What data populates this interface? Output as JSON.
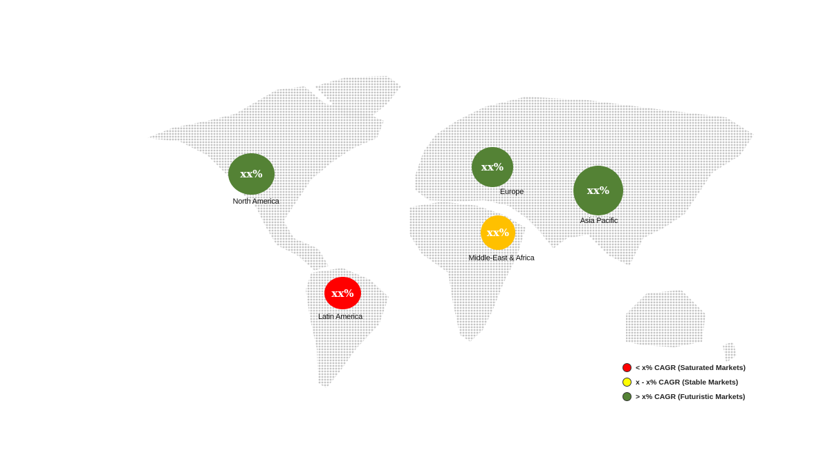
{
  "colors": {
    "saturated": "#FF0000",
    "stable": "#FFFF00",
    "futuristic": "#548235",
    "stable_bubble": "#FFC000",
    "map_dots": "#c4c4c4"
  },
  "regions": [
    {
      "name": "North America",
      "value": "xx%",
      "category": "futuristic"
    },
    {
      "name": "Europe",
      "value": "xx%",
      "category": "futuristic"
    },
    {
      "name": "Asia Pacific",
      "value": "xx%",
      "category": "futuristic"
    },
    {
      "name": "Middle-East & Africa",
      "value": "xx%",
      "category": "stable"
    },
    {
      "name": "Latin America",
      "value": "xx%",
      "category": "saturated"
    }
  ],
  "legend": [
    {
      "label": "< x% CAGR (Saturated Markets)",
      "category": "saturated"
    },
    {
      "label": "x - x% CAGR (Stable Markets)",
      "category": "stable"
    },
    {
      "label": "> x% CAGR (Futuristic Markets)",
      "category": "futuristic"
    }
  ]
}
